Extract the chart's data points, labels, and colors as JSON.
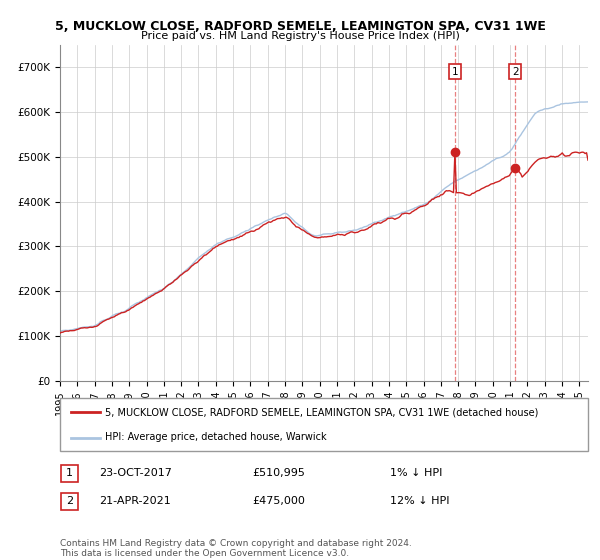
{
  "title": "5, MUCKLOW CLOSE, RADFORD SEMELE, LEAMINGTON SPA, CV31 1WE",
  "subtitle": "Price paid vs. HM Land Registry's House Price Index (HPI)",
  "ylim": [
    0,
    750000
  ],
  "xlim_start": 1995.0,
  "xlim_end": 2025.5,
  "hpi_color": "#aac4e0",
  "price_color": "#cc2222",
  "vline_color": "#e88080",
  "marker1_date": 2017.81,
  "marker1_price": 510995,
  "marker2_date": 2021.3,
  "marker2_price": 475000,
  "legend_line1": "5, MUCKLOW CLOSE, RADFORD SEMELE, LEAMINGTON SPA, CV31 1WE (detached house)",
  "legend_line2": "HPI: Average price, detached house, Warwick",
  "footnote": "Contains HM Land Registry data © Crown copyright and database right 2024.\nThis data is licensed under the Open Government Licence v3.0.",
  "background_color": "#ffffff",
  "grid_color": "#cccccc"
}
